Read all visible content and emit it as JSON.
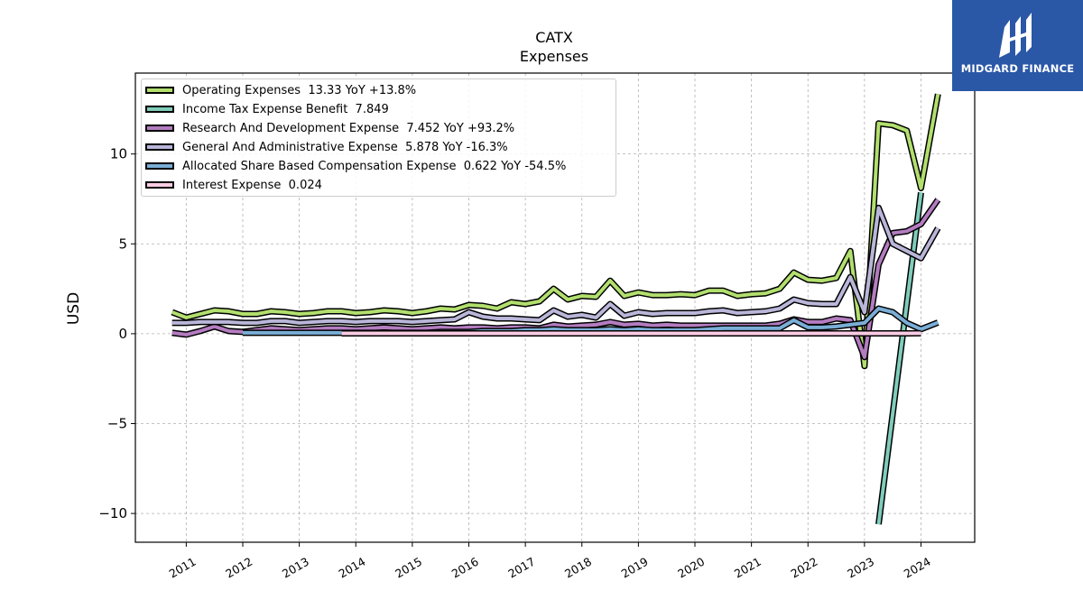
{
  "chart_data": {
    "type": "line",
    "title": "CATX",
    "subtitle": "Expenses",
    "xlabel": "",
    "ylabel": "USD",
    "xlim": [
      2010.1,
      2024.95
    ],
    "ylim": [
      -11.6,
      14.5
    ],
    "yticks": [
      -10,
      -5,
      0,
      5,
      10
    ],
    "ytick_labels": [
      "−10",
      "−5",
      "0",
      "5",
      "10"
    ],
    "xticks": [
      "2011",
      "2012",
      "2013",
      "2014",
      "2015",
      "2016",
      "2017",
      "2018",
      "2019",
      "2020",
      "2021",
      "2022",
      "2023",
      "2024"
    ],
    "grid": true,
    "legend_position": "top-left",
    "series": [
      {
        "name": "Operating Expenses",
        "legend": "Operating Expenses  13.33 YoY +13.8%",
        "color": "#b2df6e",
        "points": [
          [
            2010.75,
            1.2
          ],
          [
            2011.0,
            0.9
          ],
          [
            2011.25,
            1.1
          ],
          [
            2011.5,
            1.3
          ],
          [
            2011.75,
            1.25
          ],
          [
            2012.0,
            1.1
          ],
          [
            2012.25,
            1.1
          ],
          [
            2012.5,
            1.25
          ],
          [
            2012.75,
            1.2
          ],
          [
            2013.0,
            1.1
          ],
          [
            2013.25,
            1.15
          ],
          [
            2013.5,
            1.25
          ],
          [
            2013.75,
            1.25
          ],
          [
            2014.0,
            1.15
          ],
          [
            2014.25,
            1.2
          ],
          [
            2014.5,
            1.3
          ],
          [
            2014.75,
            1.25
          ],
          [
            2015.0,
            1.15
          ],
          [
            2015.25,
            1.25
          ],
          [
            2015.5,
            1.4
          ],
          [
            2015.75,
            1.35
          ],
          [
            2016.0,
            1.6
          ],
          [
            2016.25,
            1.55
          ],
          [
            2016.5,
            1.4
          ],
          [
            2016.75,
            1.75
          ],
          [
            2017.0,
            1.65
          ],
          [
            2017.25,
            1.8
          ],
          [
            2017.5,
            2.5
          ],
          [
            2017.75,
            1.9
          ],
          [
            2018.0,
            2.1
          ],
          [
            2018.25,
            2.05
          ],
          [
            2018.5,
            2.95
          ],
          [
            2018.75,
            2.1
          ],
          [
            2019.0,
            2.3
          ],
          [
            2019.25,
            2.15
          ],
          [
            2019.5,
            2.15
          ],
          [
            2019.75,
            2.2
          ],
          [
            2020.0,
            2.15
          ],
          [
            2020.25,
            2.4
          ],
          [
            2020.5,
            2.4
          ],
          [
            2020.75,
            2.1
          ],
          [
            2021.0,
            2.2
          ],
          [
            2021.25,
            2.25
          ],
          [
            2021.5,
            2.5
          ],
          [
            2021.75,
            3.4
          ],
          [
            2022.0,
            3.0
          ],
          [
            2022.25,
            2.95
          ],
          [
            2022.5,
            3.1
          ],
          [
            2022.75,
            4.6
          ],
          [
            2023.0,
            -1.8
          ],
          [
            2023.25,
            11.7
          ],
          [
            2023.5,
            11.6
          ],
          [
            2023.75,
            11.3
          ],
          [
            2024.0,
            8.1
          ],
          [
            2024.3,
            13.33
          ]
        ]
      },
      {
        "name": "Income Tax Expense Benefit",
        "legend": "Income Tax Expense Benefit  7.849",
        "color": "#7fcdbb",
        "points": [
          [
            2023.25,
            -10.6
          ],
          [
            2024.0,
            7.849
          ]
        ]
      },
      {
        "name": "Research And Development Expense",
        "legend": "Research And Development Expense  7.452 YoY +93.2%",
        "color": "#b47cc0",
        "points": [
          [
            2010.75,
            0.05
          ],
          [
            2011.0,
            -0.05
          ],
          [
            2011.25,
            0.15
          ],
          [
            2011.5,
            0.4
          ],
          [
            2011.75,
            0.15
          ],
          [
            2012.0,
            0.1
          ],
          [
            2012.25,
            0.2
          ],
          [
            2012.5,
            0.3
          ],
          [
            2012.75,
            0.25
          ],
          [
            2013.0,
            0.2
          ],
          [
            2013.25,
            0.25
          ],
          [
            2013.5,
            0.3
          ],
          [
            2013.75,
            0.3
          ],
          [
            2014.0,
            0.25
          ],
          [
            2014.25,
            0.3
          ],
          [
            2014.5,
            0.35
          ],
          [
            2014.75,
            0.3
          ],
          [
            2015.0,
            0.25
          ],
          [
            2015.25,
            0.3
          ],
          [
            2015.5,
            0.35
          ],
          [
            2015.75,
            0.3
          ],
          [
            2016.0,
            0.35
          ],
          [
            2016.25,
            0.35
          ],
          [
            2016.5,
            0.3
          ],
          [
            2016.75,
            0.35
          ],
          [
            2017.0,
            0.35
          ],
          [
            2017.25,
            0.3
          ],
          [
            2017.5,
            0.5
          ],
          [
            2017.75,
            0.4
          ],
          [
            2018.0,
            0.45
          ],
          [
            2018.25,
            0.5
          ],
          [
            2018.5,
            0.65
          ],
          [
            2018.75,
            0.5
          ],
          [
            2019.0,
            0.55
          ],
          [
            2019.25,
            0.45
          ],
          [
            2019.5,
            0.5
          ],
          [
            2019.75,
            0.45
          ],
          [
            2020.0,
            0.45
          ],
          [
            2020.25,
            0.45
          ],
          [
            2020.5,
            0.45
          ],
          [
            2020.75,
            0.45
          ],
          [
            2021.0,
            0.45
          ],
          [
            2021.25,
            0.45
          ],
          [
            2021.5,
            0.55
          ],
          [
            2021.75,
            0.8
          ],
          [
            2022.0,
            0.65
          ],
          [
            2022.25,
            0.65
          ],
          [
            2022.5,
            0.85
          ],
          [
            2022.75,
            0.75
          ],
          [
            2023.0,
            -1.3
          ],
          [
            2023.25,
            3.85
          ],
          [
            2023.5,
            5.6
          ],
          [
            2023.75,
            5.7
          ],
          [
            2024.0,
            6.1
          ],
          [
            2024.3,
            7.452
          ]
        ]
      },
      {
        "name": "General And Administrative Expense",
        "legend": "General And Administrative Expense  5.878 YoY -16.3%",
        "color": "#b9b6d9",
        "points": [
          [
            2010.75,
            0.6
          ],
          [
            2011.0,
            0.6
          ],
          [
            2011.25,
            0.65
          ],
          [
            2011.5,
            0.65
          ],
          [
            2011.75,
            0.65
          ],
          [
            2012.0,
            0.6
          ],
          [
            2012.25,
            0.6
          ],
          [
            2012.5,
            0.7
          ],
          [
            2012.75,
            0.7
          ],
          [
            2013.0,
            0.6
          ],
          [
            2013.25,
            0.65
          ],
          [
            2013.5,
            0.7
          ],
          [
            2013.75,
            0.7
          ],
          [
            2014.0,
            0.65
          ],
          [
            2014.25,
            0.7
          ],
          [
            2014.5,
            0.7
          ],
          [
            2014.75,
            0.7
          ],
          [
            2015.0,
            0.65
          ],
          [
            2015.25,
            0.7
          ],
          [
            2015.5,
            0.75
          ],
          [
            2015.75,
            0.8
          ],
          [
            2016.0,
            1.2
          ],
          [
            2016.25,
            0.95
          ],
          [
            2016.5,
            0.85
          ],
          [
            2016.75,
            0.85
          ],
          [
            2017.0,
            0.8
          ],
          [
            2017.25,
            0.75
          ],
          [
            2017.5,
            1.3
          ],
          [
            2017.75,
            0.95
          ],
          [
            2018.0,
            1.05
          ],
          [
            2018.25,
            0.9
          ],
          [
            2018.5,
            1.65
          ],
          [
            2018.75,
            1.0
          ],
          [
            2019.0,
            1.2
          ],
          [
            2019.25,
            1.1
          ],
          [
            2019.5,
            1.15
          ],
          [
            2019.75,
            1.15
          ],
          [
            2020.0,
            1.15
          ],
          [
            2020.25,
            1.25
          ],
          [
            2020.5,
            1.3
          ],
          [
            2020.75,
            1.15
          ],
          [
            2021.0,
            1.2
          ],
          [
            2021.25,
            1.25
          ],
          [
            2021.5,
            1.4
          ],
          [
            2021.75,
            1.9
          ],
          [
            2022.0,
            1.7
          ],
          [
            2022.25,
            1.65
          ],
          [
            2022.5,
            1.65
          ],
          [
            2022.75,
            3.15
          ],
          [
            2023.0,
            1.2
          ],
          [
            2023.25,
            7.0
          ],
          [
            2023.5,
            5.0
          ],
          [
            2023.75,
            4.6
          ],
          [
            2024.0,
            4.2
          ],
          [
            2024.3,
            5.878
          ]
        ]
      },
      {
        "name": "Allocated Share Based Compensation Expense",
        "legend": "Allocated Share Based Compensation Expense  0.622 YoY -54.5%",
        "color": "#7aaed6",
        "points": [
          [
            2012.0,
            0.05
          ],
          [
            2012.25,
            0.05
          ],
          [
            2012.5,
            0.05
          ],
          [
            2012.75,
            0.05
          ],
          [
            2013.0,
            0.05
          ],
          [
            2013.25,
            0.05
          ],
          [
            2013.5,
            0.05
          ],
          [
            2013.75,
            0.05
          ],
          [
            2014.0,
            0.05
          ],
          [
            2014.25,
            0.05
          ],
          [
            2014.5,
            0.05
          ],
          [
            2014.75,
            0.05
          ],
          [
            2015.0,
            0.05
          ],
          [
            2015.25,
            0.05
          ],
          [
            2015.5,
            0.1
          ],
          [
            2015.75,
            0.1
          ],
          [
            2016.0,
            0.1
          ],
          [
            2016.25,
            0.15
          ],
          [
            2016.5,
            0.15
          ],
          [
            2016.75,
            0.15
          ],
          [
            2017.0,
            0.2
          ],
          [
            2017.25,
            0.2
          ],
          [
            2017.5,
            0.25
          ],
          [
            2017.75,
            0.2
          ],
          [
            2018.0,
            0.2
          ],
          [
            2018.25,
            0.2
          ],
          [
            2018.5,
            0.25
          ],
          [
            2018.75,
            0.2
          ],
          [
            2019.0,
            0.25
          ],
          [
            2019.25,
            0.2
          ],
          [
            2019.5,
            0.2
          ],
          [
            2019.75,
            0.2
          ],
          [
            2020.0,
            0.2
          ],
          [
            2020.25,
            0.25
          ],
          [
            2020.5,
            0.3
          ],
          [
            2020.75,
            0.3
          ],
          [
            2021.0,
            0.3
          ],
          [
            2021.25,
            0.3
          ],
          [
            2021.5,
            0.3
          ],
          [
            2021.75,
            0.75
          ],
          [
            2022.0,
            0.35
          ],
          [
            2022.25,
            0.35
          ],
          [
            2022.5,
            0.4
          ],
          [
            2022.75,
            0.5
          ],
          [
            2023.0,
            0.6
          ],
          [
            2023.25,
            1.4
          ],
          [
            2023.5,
            1.2
          ],
          [
            2023.75,
            0.6
          ],
          [
            2024.0,
            0.25
          ],
          [
            2024.3,
            0.622
          ]
        ]
      },
      {
        "name": "Interest Expense",
        "legend": "Interest Expense  0.024",
        "color": "#fbcce3",
        "points": [
          [
            2013.75,
            0.02
          ],
          [
            2014.25,
            0.02
          ],
          [
            2014.75,
            0.02
          ],
          [
            2015.25,
            0.02
          ],
          [
            2015.75,
            0.02
          ],
          [
            2016.25,
            0.02
          ],
          [
            2016.75,
            0.02
          ],
          [
            2017.25,
            0.02
          ],
          [
            2017.75,
            0.02
          ],
          [
            2018.25,
            0.02
          ],
          [
            2018.75,
            0.02
          ],
          [
            2019.25,
            0.02
          ],
          [
            2019.75,
            0.02
          ],
          [
            2020.25,
            0.02
          ],
          [
            2020.75,
            0.02
          ],
          [
            2021.25,
            0.02
          ],
          [
            2021.75,
            0.02
          ],
          [
            2022.25,
            0.02
          ],
          [
            2022.75,
            0.02
          ],
          [
            2023.25,
            0.02
          ],
          [
            2023.75,
            0.02
          ],
          [
            2024.0,
            0.024
          ]
        ]
      }
    ]
  },
  "branding": {
    "name": "MIDGARD FINANCE",
    "color": "#2a57a6"
  }
}
